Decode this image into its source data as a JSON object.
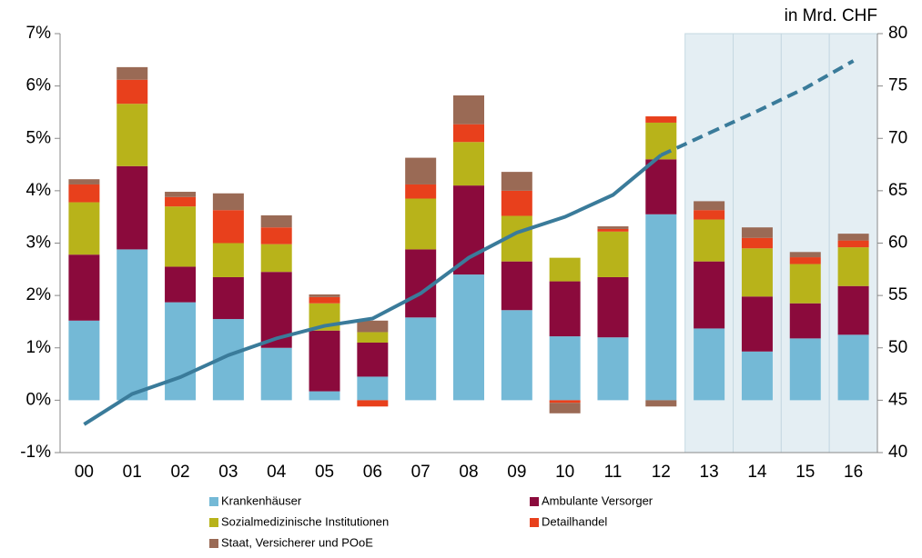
{
  "chart_data": {
    "type": "bar",
    "stacked": true,
    "categories": [
      "00",
      "01",
      "02",
      "03",
      "04",
      "05",
      "06",
      "07",
      "08",
      "09",
      "10",
      "11",
      "12",
      "13",
      "14",
      "15",
      "16"
    ],
    "series": [
      {
        "name": "Krankenhäuser",
        "color": "#74b9d6",
        "values": [
          1.52,
          2.88,
          1.87,
          1.55,
          1.0,
          0.17,
          0.45,
          1.58,
          2.4,
          1.72,
          1.22,
          1.2,
          3.55,
          1.37,
          0.93,
          1.18,
          1.25
        ]
      },
      {
        "name": "Ambulante Versorger",
        "color": "#8b0a3c",
        "values": [
          1.26,
          1.59,
          0.68,
          0.8,
          1.45,
          1.16,
          0.65,
          1.3,
          1.7,
          0.93,
          1.05,
          1.15,
          1.05,
          1.28,
          1.05,
          0.67,
          0.93
        ]
      },
      {
        "name": "Sozialmedizinische Institutionen",
        "color": "#b8b31a",
        "values": [
          1.0,
          1.19,
          1.15,
          0.65,
          0.53,
          0.52,
          0.2,
          0.97,
          0.83,
          0.87,
          0.45,
          0.87,
          0.7,
          0.8,
          0.92,
          0.75,
          0.74
        ]
      },
      {
        "name": "Detailhandel",
        "color": "#e8401c",
        "values": [
          0.34,
          0.46,
          0.18,
          0.63,
          0.32,
          0.12,
          -0.12,
          0.27,
          0.34,
          0.48,
          -0.05,
          0.05,
          0.12,
          0.18,
          0.2,
          0.13,
          0.13
        ]
      },
      {
        "name": "Staat, Versicherer und POoE",
        "color": "#9a6a55",
        "values": [
          0.1,
          0.24,
          0.1,
          0.32,
          0.23,
          0.05,
          0.22,
          0.51,
          0.55,
          0.36,
          -0.2,
          0.05,
          -0.12,
          0.17,
          0.2,
          0.1,
          0.13
        ]
      }
    ],
    "line": {
      "color": "#3a7b9a",
      "axis": "y2",
      "dash_from": "12",
      "values": [
        42.7,
        45.6,
        47.2,
        49.3,
        50.9,
        52.1,
        52.8,
        55.2,
        58.6,
        61.0,
        62.5,
        64.6,
        68.4,
        70.5,
        72.6,
        74.8,
        77.4
      ]
    },
    "shade_from": "13",
    "ylim": [
      -1,
      7
    ],
    "yticks": [
      {
        "value": -1,
        "label": "-1%"
      },
      {
        "value": 0,
        "label": "0%"
      },
      {
        "value": 1,
        "label": "1%"
      },
      {
        "value": 2,
        "label": "2%"
      },
      {
        "value": 3,
        "label": "3%"
      },
      {
        "value": 4,
        "label": "4%"
      },
      {
        "value": 5,
        "label": "5%"
      },
      {
        "value": 6,
        "label": "6%"
      },
      {
        "value": 7,
        "label": "7%"
      }
    ],
    "y2lim": [
      40,
      80
    ],
    "y2ticks": [
      40,
      45,
      50,
      55,
      60,
      65,
      70,
      75,
      80
    ],
    "y2_label": "in Mrd. CHF",
    "legend": "bottom"
  }
}
